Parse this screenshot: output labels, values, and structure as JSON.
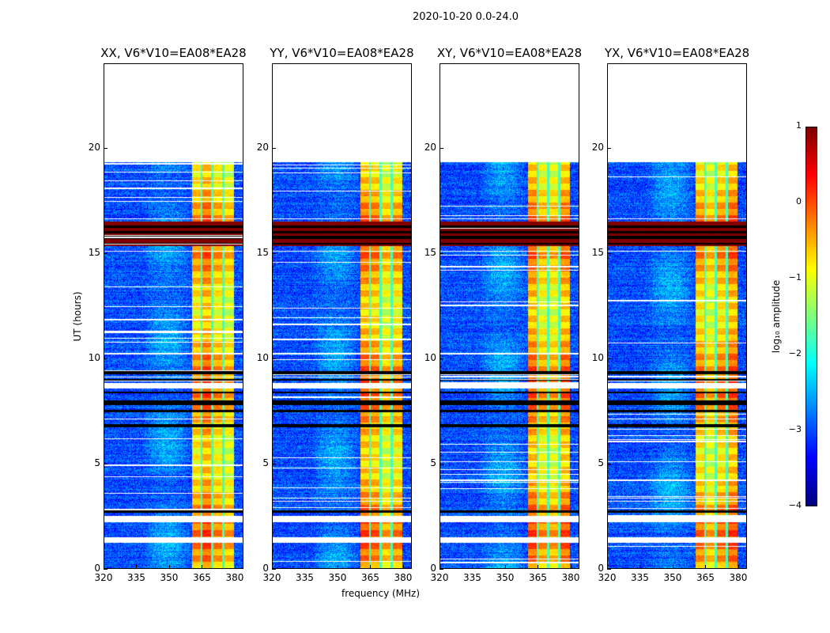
{
  "chart_data": {
    "type": "heatmap",
    "title": "2020-10-20 0.0-24.0",
    "xlabel": "frequency (MHz)",
    "ylabel": "UT (hours)",
    "xlim": [
      320,
      384
    ],
    "ylim": [
      0,
      24
    ],
    "xticks": [
      320,
      335,
      350,
      365,
      380
    ],
    "yticks": [
      0,
      5,
      10,
      15,
      20
    ],
    "data_end_hour": 19.3,
    "bright_band_mhz": [
      360.5,
      380
    ],
    "band_gaps_mhz": [
      365,
      370,
      375
    ],
    "flagged_white_hours": [
      [
        1.2,
        1.45
      ],
      [
        2.15,
        2.45
      ],
      [
        8.55,
        8.8
      ],
      [
        9.05,
        9.1
      ],
      [
        15.05,
        15.1
      ],
      [
        16.6,
        16.65
      ]
    ],
    "flagged_black_hours": [
      [
        2.6,
        2.72
      ],
      [
        6.7,
        6.85
      ],
      [
        7.4,
        7.5
      ],
      [
        7.75,
        7.95
      ],
      [
        8.3,
        8.4
      ],
      [
        8.9,
        8.98
      ],
      [
        9.2,
        9.35
      ],
      [
        15.7,
        15.8
      ],
      [
        16.2,
        16.3
      ]
    ],
    "saturated_hours": [
      [
        15.3,
        16.5
      ]
    ],
    "panels": [
      {
        "title": "XX, V6*V10=EA08*EA28"
      },
      {
        "title": "YY, V6*V10=EA08*EA28"
      },
      {
        "title": "XY, V6*V10=EA08*EA28"
      },
      {
        "title": "YX, V6*V10=EA08*EA28"
      }
    ],
    "colorbar": {
      "label": "log₁₀ amplitude",
      "range": [
        -4,
        1
      ],
      "ticks": [
        "1",
        "0",
        "−1",
        "−2",
        "−3",
        "−4"
      ],
      "colormap": "jet"
    }
  }
}
